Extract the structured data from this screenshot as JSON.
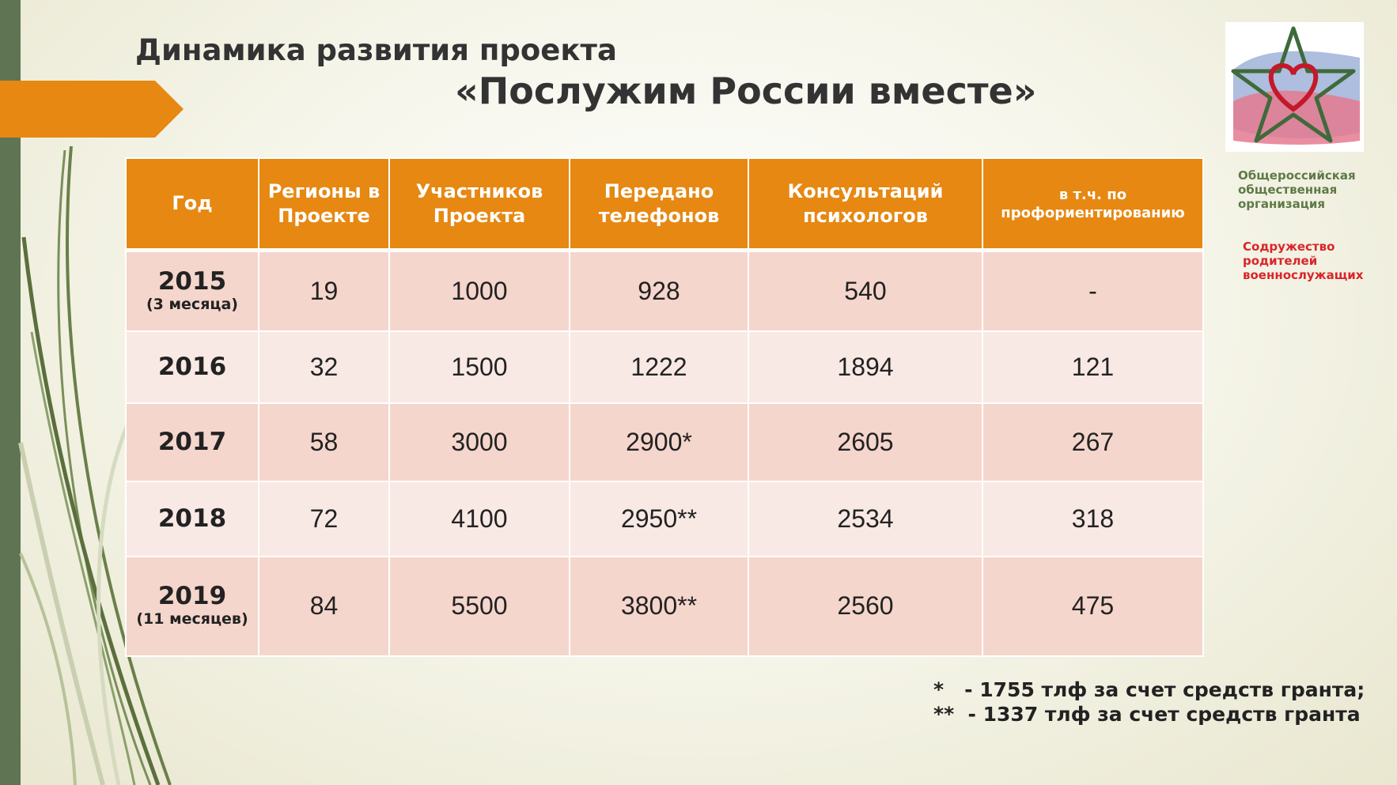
{
  "title": {
    "line1": "Динамика развития проекта",
    "line2": "«Послужим России вместе»"
  },
  "table": {
    "headers": [
      "Год",
      "Регионы в Проекте",
      "Участников Проекта",
      "Передано телефонов",
      "Консультаций психологов",
      "в т.ч. по профориентированию"
    ],
    "rows": [
      {
        "year": "2015",
        "year_note": "(3 месяца)",
        "regions": "19",
        "participants": "1000",
        "phones": "928",
        "consultations": "540",
        "career": "-"
      },
      {
        "year": "2016",
        "year_note": "",
        "regions": "32",
        "participants": "1500",
        "phones": "1222",
        "consultations": "1894",
        "career": "121"
      },
      {
        "year": "2017",
        "year_note": "",
        "regions": "58",
        "participants": "3000",
        "phones": "2900*",
        "consultations": "2605",
        "career": "267"
      },
      {
        "year": "2018",
        "year_note": "",
        "regions": "72",
        "participants": "4100",
        "phones": "2950**",
        "consultations": "2534",
        "career": "318"
      },
      {
        "year": "2019",
        "year_note": "(11 месяцев)",
        "regions": "84",
        "participants": "5500",
        "phones": "3800**",
        "consultations": "2560",
        "career": "475"
      }
    ]
  },
  "footnotes": [
    "*   - 1755 тлф за счет средств гранта;",
    "**  - 1337 тлф за счет средств гранта"
  ],
  "organization": {
    "line1": "Общероссийская",
    "line2": "общественная",
    "line3": "организация",
    "name1": "Содружество",
    "name2": "родителей",
    "name3": "военнослужащих"
  },
  "colors": {
    "header_orange": "#e68812",
    "row_dark": "#f5d6cc",
    "row_light": "#f9e9e4",
    "sidebar_green": "#5f7452",
    "org_green": "#5e7a45",
    "org_red": "#d9262a"
  }
}
